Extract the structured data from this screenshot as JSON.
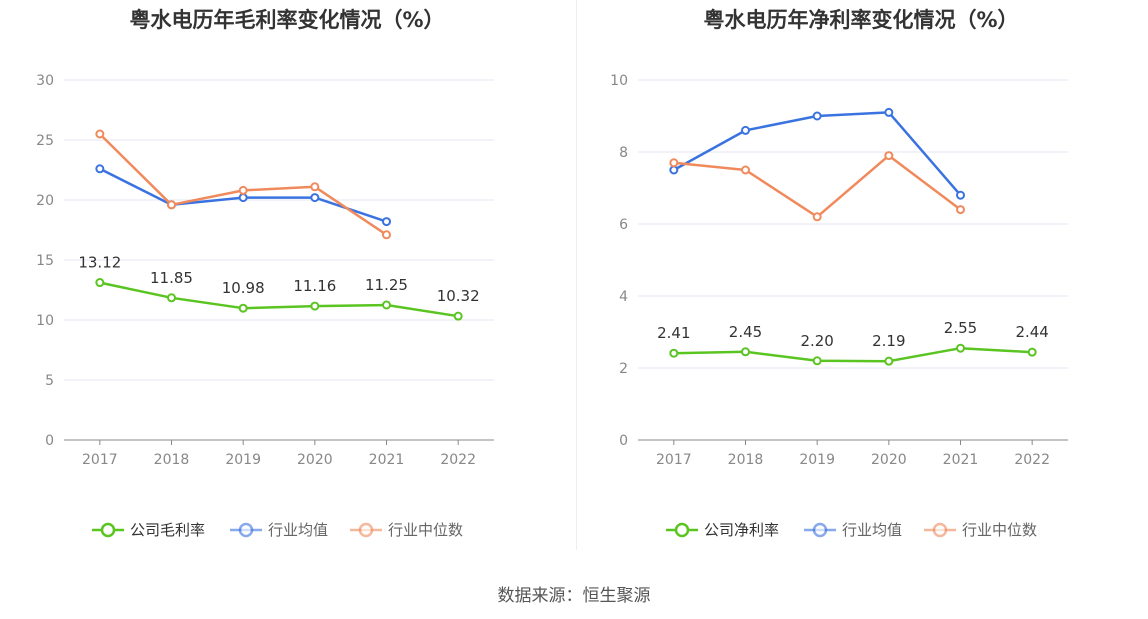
{
  "colors": {
    "company": "#5ac421",
    "industry_avg": "#3a73e0",
    "industry_median": "#f08a5d",
    "grid": "#e3e7f3",
    "axis": "#888888",
    "tick_text": "#888888",
    "label_text": "#333333"
  },
  "legend": [
    "公司毛利率",
    "行业均值",
    "行业中位数"
  ],
  "source": "数据来源：恒生聚源",
  "chart_data": [
    {
      "type": "line",
      "title": "粤水电历年毛利率变化情况（%）",
      "categories": [
        "2017",
        "2018",
        "2019",
        "2020",
        "2021",
        "2022"
      ],
      "ylim": [
        0,
        30
      ],
      "yticks": [
        "0",
        "5",
        "10",
        "15",
        "20",
        "25",
        "30"
      ],
      "grid": true,
      "legend_position": "bottom",
      "series": [
        {
          "name": "公司毛利率",
          "values": [
            13.12,
            11.85,
            10.98,
            11.16,
            11.25,
            10.32
          ],
          "labels": [
            "13.12",
            "11.85",
            "10.98",
            "11.16",
            "11.25",
            "10.32"
          ]
        },
        {
          "name": "行业均值",
          "values": [
            22.6,
            19.6,
            20.2,
            20.2,
            18.2,
            null
          ]
        },
        {
          "name": "行业中位数",
          "values": [
            25.5,
            19.6,
            20.8,
            21.1,
            17.1,
            null
          ]
        }
      ]
    },
    {
      "type": "line",
      "title": "粤水电历年净利率变化情况（%）",
      "categories": [
        "2017",
        "2018",
        "2019",
        "2020",
        "2021",
        "2022"
      ],
      "ylim": [
        0,
        10
      ],
      "yticks": [
        "0",
        "2",
        "4",
        "6",
        "8",
        "10"
      ],
      "grid": true,
      "legend_position": "bottom",
      "series": [
        {
          "name": "公司净利率",
          "values": [
            2.41,
            2.45,
            2.2,
            2.19,
            2.55,
            2.44
          ],
          "labels": [
            "2.41",
            "2.45",
            "2.20",
            "2.19",
            "2.55",
            "2.44"
          ]
        },
        {
          "name": "行业均值",
          "values": [
            7.5,
            8.6,
            9.0,
            9.1,
            6.8,
            null
          ]
        },
        {
          "name": "行业中位数",
          "values": [
            7.7,
            7.5,
            6.2,
            7.9,
            6.4,
            null
          ]
        }
      ]
    }
  ]
}
